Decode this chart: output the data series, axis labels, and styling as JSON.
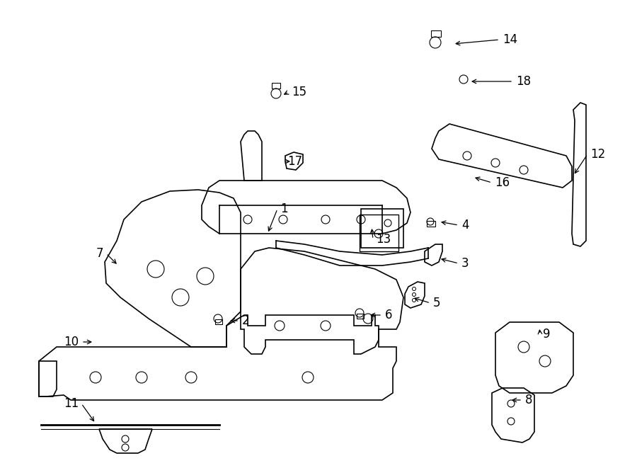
{
  "bg_color": "#ffffff",
  "line_color": "#000000",
  "label_color": "#000000",
  "font_size_labels": 12,
  "label_defs": [
    [
      1,
      392,
      295,
      378,
      330,
      "right"
    ],
    [
      2,
      338,
      453,
      322,
      453,
      "right"
    ],
    [
      3,
      648,
      372,
      620,
      365,
      "right"
    ],
    [
      4,
      648,
      318,
      620,
      313,
      "right"
    ],
    [
      5,
      608,
      428,
      582,
      420,
      "right"
    ],
    [
      6,
      540,
      445,
      520,
      445,
      "right"
    ],
    [
      7,
      150,
      358,
      167,
      375,
      "left"
    ],
    [
      8,
      738,
      565,
      720,
      565,
      "right"
    ],
    [
      9,
      763,
      472,
      762,
      462,
      "right"
    ],
    [
      10,
      115,
      483,
      133,
      483,
      "left"
    ],
    [
      11,
      115,
      570,
      135,
      598,
      "left"
    ],
    [
      12,
      830,
      218,
      810,
      248,
      "right"
    ],
    [
      13,
      527,
      338,
      525,
      320,
      "right"
    ],
    [
      14,
      706,
      56,
      640,
      62,
      "right"
    ],
    [
      15,
      408,
      130,
      398,
      135,
      "right"
    ],
    [
      16,
      695,
      258,
      668,
      250,
      "right"
    ],
    [
      17,
      402,
      228,
      413,
      228,
      "right"
    ],
    [
      18,
      725,
      115,
      663,
      115,
      "right"
    ]
  ]
}
